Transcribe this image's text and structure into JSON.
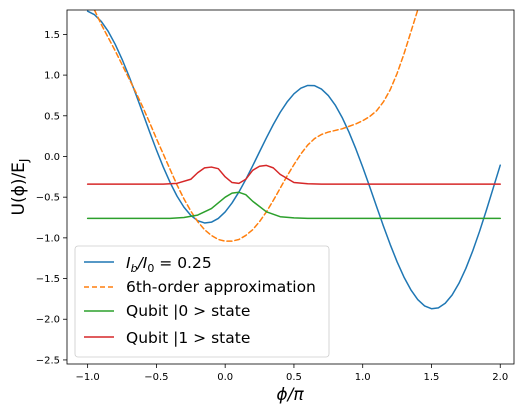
{
  "chart_data": {
    "type": "line",
    "xlabel": "ϕ/π",
    "ylabel": "U(ϕ)/E",
    "ylabel_subscript": "J",
    "xlim": [
      -1.15,
      2.1
    ],
    "ylim": [
      -2.55,
      1.8
    ],
    "x_ticks": [
      -1.0,
      -0.5,
      0.0,
      0.5,
      1.0,
      1.5,
      2.0
    ],
    "x_tick_labels": [
      "−1.0",
      "−0.5",
      "0.0",
      "0.5",
      "1.0",
      "1.5",
      "2.0"
    ],
    "y_ticks": [
      1.5,
      1.0,
      0.5,
      0.0,
      -0.5,
      -1.0,
      -1.5,
      -2.0,
      -2.5
    ],
    "y_tick_labels": [
      "1.5",
      "1.0",
      "0.5",
      "0.0",
      "−0.5",
      "−1.0",
      "−1.5",
      "−2.0",
      "−2.5"
    ],
    "legend_position": "lower-left",
    "series": [
      {
        "name": "I_b/I_0 = 0.25",
        "legend_parts": [
          "I",
          "b",
          "/I",
          "0",
          " = 0.25"
        ],
        "color": "#1f77b4",
        "dash": "solid",
        "x": [
          -1.0,
          -0.95,
          -0.9,
          -0.85,
          -0.8,
          -0.75,
          -0.7,
          -0.65,
          -0.6,
          -0.55,
          -0.5,
          -0.45,
          -0.4,
          -0.35,
          -0.3,
          -0.25,
          -0.2,
          -0.15,
          -0.1,
          -0.05,
          0.0,
          0.05,
          0.1,
          0.15,
          0.2,
          0.25,
          0.3,
          0.35,
          0.4,
          0.45,
          0.5,
          0.55,
          0.6,
          0.65,
          0.7,
          0.75,
          0.8,
          0.85,
          0.9,
          0.95,
          1.0,
          1.05,
          1.1,
          1.15,
          1.2,
          1.25,
          1.3,
          1.35,
          1.4,
          1.45,
          1.5,
          1.55,
          1.6,
          1.65,
          1.7,
          1.75,
          1.8,
          1.85,
          1.9,
          1.95,
          2.0
        ],
        "y": [
          1.785,
          1.742,
          1.658,
          1.536,
          1.38,
          1.196,
          0.99,
          0.768,
          0.537,
          0.306,
          0.081,
          -0.13,
          -0.321,
          -0.487,
          -0.622,
          -0.724,
          -0.789,
          -0.817,
          -0.807,
          -0.761,
          -0.681,
          -0.571,
          -0.436,
          -0.282,
          -0.115,
          0.058,
          0.229,
          0.393,
          0.542,
          0.669,
          0.77,
          0.839,
          0.873,
          0.87,
          0.829,
          0.749,
          0.632,
          0.481,
          0.3,
          0.094,
          -0.131,
          -0.368,
          -0.611,
          -0.852,
          -1.082,
          -1.294,
          -1.482,
          -1.638,
          -1.758,
          -1.836,
          -1.871,
          -1.86,
          -1.803,
          -1.702,
          -1.558,
          -1.376,
          -1.16,
          -0.918,
          -0.656,
          -0.382,
          -0.107
        ]
      },
      {
        "name": "6th-order approximation",
        "color": "#ff7f0e",
        "dash": "dashed",
        "x": [
          -0.95,
          -0.9,
          -0.85,
          -0.8,
          -0.75,
          -0.7,
          -0.65,
          -0.6,
          -0.55,
          -0.5,
          -0.45,
          -0.4,
          -0.35,
          -0.3,
          -0.25,
          -0.2,
          -0.15,
          -0.1,
          -0.05,
          0.0,
          0.05,
          0.1,
          0.15,
          0.2,
          0.25,
          0.3,
          0.35,
          0.4,
          0.45,
          0.5,
          0.55,
          0.6,
          0.65,
          0.7,
          0.75,
          0.8,
          0.85,
          0.9,
          0.95,
          1.0,
          1.05,
          1.1,
          1.15,
          1.2,
          1.25,
          1.3,
          1.35,
          1.4
        ],
        "y": [
          1.8,
          1.62,
          1.46,
          1.3,
          1.13,
          0.96,
          0.79,
          0.61,
          0.42,
          0.22,
          0.03,
          -0.16,
          -0.35,
          -0.52,
          -0.67,
          -0.8,
          -0.9,
          -0.97,
          -1.02,
          -1.04,
          -1.04,
          -1.02,
          -0.97,
          -0.9,
          -0.8,
          -0.68,
          -0.54,
          -0.39,
          -0.24,
          -0.1,
          0.03,
          0.14,
          0.22,
          0.27,
          0.3,
          0.32,
          0.34,
          0.37,
          0.4,
          0.44,
          0.49,
          0.56,
          0.67,
          0.82,
          1.02,
          1.26,
          1.53,
          1.8
        ]
      },
      {
        "name": "Qubit |0 > state",
        "color": "#2ca02c",
        "dash": "solid",
        "x": [
          -1.0,
          -0.4,
          -0.3,
          -0.2,
          -0.1,
          0.0,
          0.05,
          0.1,
          0.15,
          0.2,
          0.3,
          0.4,
          0.5,
          0.6,
          2.0
        ],
        "y": [
          -0.76,
          -0.76,
          -0.75,
          -0.72,
          -0.64,
          -0.5,
          -0.45,
          -0.44,
          -0.47,
          -0.55,
          -0.68,
          -0.74,
          -0.755,
          -0.76,
          -0.76
        ]
      },
      {
        "name": "Qubit |1 > state",
        "color": "#d62728",
        "dash": "solid",
        "x": [
          -1.0,
          -0.45,
          -0.35,
          -0.25,
          -0.2,
          -0.15,
          -0.1,
          -0.05,
          0.0,
          0.05,
          0.1,
          0.15,
          0.2,
          0.25,
          0.3,
          0.35,
          0.4,
          0.5,
          0.6,
          0.7,
          2.0
        ],
        "y": [
          -0.34,
          -0.34,
          -0.33,
          -0.28,
          -0.2,
          -0.14,
          -0.13,
          -0.15,
          -0.25,
          -0.32,
          -0.33,
          -0.28,
          -0.17,
          -0.12,
          -0.11,
          -0.14,
          -0.22,
          -0.32,
          -0.335,
          -0.34,
          -0.34
        ]
      }
    ]
  }
}
